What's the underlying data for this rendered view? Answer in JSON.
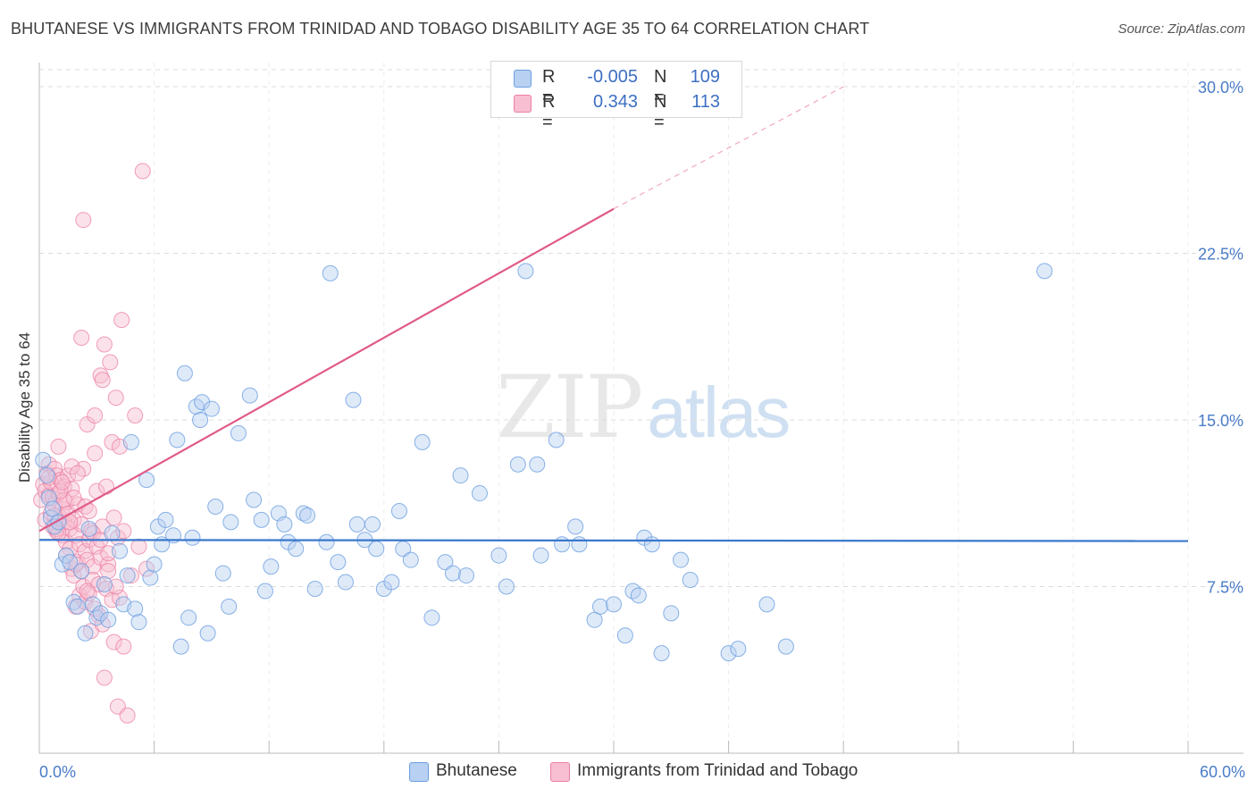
{
  "title": "BHUTANESE VS IMMIGRANTS FROM TRINIDAD AND TOBAGO DISABILITY AGE 35 TO 64 CORRELATION CHART",
  "source": "Source: ZipAtlas.com",
  "watermark": {
    "zip": "ZIP",
    "atlas": "atlas"
  },
  "colors": {
    "blue": "#6b9fe0",
    "blue_fill": "#b8d0f2",
    "blue_line": "#3a78cc",
    "pink": "#ec7fa3",
    "pink_fill": "#f7bfd1",
    "pink_line": "#e05a88",
    "grid": "#dcdcdc"
  },
  "legend": {
    "rows": [
      {
        "r_label": "R =",
        "r_value": "-0.005",
        "n_label": "N =",
        "n_value": "109"
      },
      {
        "r_label": "R =",
        "r_value": "0.343",
        "n_label": "N =",
        "n_value": "113"
      }
    ]
  },
  "bottom_legend": [
    "Bhutanese",
    "Immigrants from Trinidad and Tobago"
  ],
  "chart_data": {
    "type": "scatter",
    "title": "BHUTANESE VS IMMIGRANTS FROM TRINIDAD AND TOBAGO DISABILITY AGE 35 TO 64 CORRELATION CHART",
    "xlabel": "",
    "ylabel": "Disability Age 35 to 64",
    "xlim": [
      0,
      60
    ],
    "ylim": [
      0,
      31
    ],
    "x_tick_labels": [
      "0.0%",
      "60.0%"
    ],
    "y_ticks": [
      7.5,
      15.0,
      22.5,
      30.0
    ],
    "y_tick_labels": [
      "7.5%",
      "15.0%",
      "22.5%",
      "30.0%"
    ],
    "grid": true,
    "legend_position": "top-center",
    "series": [
      {
        "name": "Bhutanese",
        "trend": {
          "x": [
            0,
            60
          ],
          "y": [
            9.6,
            9.55
          ]
        },
        "points": [
          [
            0.2,
            13.2
          ],
          [
            0.4,
            12.5
          ],
          [
            0.5,
            11.5
          ],
          [
            0.6,
            10.6
          ],
          [
            0.7,
            11.0
          ],
          [
            0.8,
            10.2
          ],
          [
            1.0,
            10.4
          ],
          [
            1.2,
            8.5
          ],
          [
            1.4,
            8.9
          ],
          [
            1.6,
            8.6
          ],
          [
            1.8,
            6.8
          ],
          [
            2.0,
            6.6
          ],
          [
            2.2,
            8.2
          ],
          [
            2.4,
            5.4
          ],
          [
            2.6,
            10.1
          ],
          [
            2.8,
            6.7
          ],
          [
            3.0,
            6.1
          ],
          [
            3.2,
            6.3
          ],
          [
            3.4,
            7.6
          ],
          [
            3.6,
            6.0
          ],
          [
            3.8,
            9.9
          ],
          [
            4.2,
            9.1
          ],
          [
            4.4,
            6.7
          ],
          [
            4.6,
            8.0
          ],
          [
            4.8,
            14.0
          ],
          [
            5.0,
            6.5
          ],
          [
            5.2,
            5.9
          ],
          [
            5.6,
            12.3
          ],
          [
            5.8,
            7.9
          ],
          [
            6.0,
            8.5
          ],
          [
            6.2,
            10.2
          ],
          [
            6.4,
            9.4
          ],
          [
            6.6,
            10.5
          ],
          [
            7.0,
            9.8
          ],
          [
            7.2,
            14.1
          ],
          [
            7.4,
            4.8
          ],
          [
            7.6,
            17.1
          ],
          [
            7.8,
            6.1
          ],
          [
            8.0,
            9.7
          ],
          [
            8.2,
            15.6
          ],
          [
            8.5,
            15.8
          ],
          [
            8.8,
            5.4
          ],
          [
            9.0,
            15.5
          ],
          [
            9.2,
            11.1
          ],
          [
            9.6,
            8.1
          ],
          [
            9.9,
            6.6
          ],
          [
            10.0,
            10.4
          ],
          [
            10.4,
            14.4
          ],
          [
            11.0,
            16.1
          ],
          [
            11.2,
            11.4
          ],
          [
            11.6,
            10.5
          ],
          [
            11.8,
            7.3
          ],
          [
            12.1,
            8.4
          ],
          [
            12.5,
            10.8
          ],
          [
            12.8,
            10.3
          ],
          [
            13.0,
            9.5
          ],
          [
            13.4,
            9.2
          ],
          [
            13.8,
            10.8
          ],
          [
            14.0,
            10.7
          ],
          [
            14.4,
            7.4
          ],
          [
            15.0,
            9.5
          ],
          [
            15.2,
            21.6
          ],
          [
            15.6,
            8.6
          ],
          [
            16.0,
            7.7
          ],
          [
            16.4,
            15.9
          ],
          [
            16.6,
            10.3
          ],
          [
            17.0,
            9.6
          ],
          [
            17.4,
            10.3
          ],
          [
            17.6,
            9.2
          ],
          [
            18.0,
            7.4
          ],
          [
            18.4,
            7.7
          ],
          [
            18.8,
            10.9
          ],
          [
            19.0,
            9.2
          ],
          [
            19.4,
            8.7
          ],
          [
            20.0,
            14.0
          ],
          [
            20.5,
            6.1
          ],
          [
            21.2,
            8.6
          ],
          [
            21.6,
            8.1
          ],
          [
            22.0,
            12.5
          ],
          [
            22.3,
            8.0
          ],
          [
            23.0,
            11.7
          ],
          [
            24.0,
            8.9
          ],
          [
            24.4,
            7.5
          ],
          [
            25.0,
            13.0
          ],
          [
            25.4,
            21.7
          ],
          [
            26.0,
            13.0
          ],
          [
            26.2,
            8.9
          ],
          [
            27.0,
            14.1
          ],
          [
            27.3,
            9.4
          ],
          [
            28.0,
            10.2
          ],
          [
            28.2,
            9.4
          ],
          [
            29.0,
            6.0
          ],
          [
            29.3,
            6.6
          ],
          [
            30.0,
            6.7
          ],
          [
            30.6,
            5.3
          ],
          [
            31.0,
            7.3
          ],
          [
            31.3,
            7.1
          ],
          [
            31.6,
            9.7
          ],
          [
            32.0,
            9.4
          ],
          [
            32.5,
            4.5
          ],
          [
            33.0,
            6.3
          ],
          [
            33.5,
            8.7
          ],
          [
            34.0,
            7.8
          ],
          [
            36.0,
            4.5
          ],
          [
            36.5,
            4.7
          ],
          [
            38.0,
            6.7
          ],
          [
            39.0,
            4.8
          ],
          [
            52.5,
            21.7
          ],
          [
            8.4,
            15.0
          ]
        ]
      },
      {
        "name": "Immigrants from Trinidad and Tobago",
        "trend": {
          "x": [
            0,
            30
          ],
          "y": [
            10.0,
            24.5
          ]
        },
        "trend_dashed": {
          "x": [
            30,
            42
          ],
          "y": [
            24.5,
            30.0
          ]
        },
        "points": [
          [
            0.1,
            11.4
          ],
          [
            0.2,
            12.1
          ],
          [
            0.3,
            11.8
          ],
          [
            0.3,
            10.5
          ],
          [
            0.4,
            12.6
          ],
          [
            0.5,
            11.6
          ],
          [
            0.5,
            13.0
          ],
          [
            0.6,
            12.2
          ],
          [
            0.6,
            10.8
          ],
          [
            0.7,
            11.5
          ],
          [
            0.7,
            10.2
          ],
          [
            0.8,
            12.8
          ],
          [
            0.8,
            11.2
          ],
          [
            0.9,
            12.5
          ],
          [
            0.9,
            10.0
          ],
          [
            1.0,
            11.7
          ],
          [
            1.0,
            13.8
          ],
          [
            1.1,
            10.6
          ],
          [
            1.1,
            12.3
          ],
          [
            1.2,
            11.0
          ],
          [
            1.2,
            9.8
          ],
          [
            1.3,
            10.4
          ],
          [
            1.3,
            12.0
          ],
          [
            1.4,
            11.3
          ],
          [
            1.4,
            9.5
          ],
          [
            1.5,
            10.8
          ],
          [
            1.5,
            12.5
          ],
          [
            1.6,
            10.1
          ],
          [
            1.6,
            9.2
          ],
          [
            1.7,
            11.9
          ],
          [
            1.7,
            8.3
          ],
          [
            1.8,
            10.5
          ],
          [
            1.8,
            8.0
          ],
          [
            1.9,
            9.8
          ],
          [
            1.9,
            6.6
          ],
          [
            2.0,
            11.2
          ],
          [
            2.0,
            8.6
          ],
          [
            2.1,
            9.4
          ],
          [
            2.1,
            7.1
          ],
          [
            2.2,
            10.3
          ],
          [
            2.2,
            8.2
          ],
          [
            2.3,
            12.8
          ],
          [
            2.3,
            7.5
          ],
          [
            2.4,
            9.1
          ],
          [
            2.4,
            6.8
          ],
          [
            2.5,
            8.7
          ],
          [
            2.5,
            14.8
          ],
          [
            2.6,
            7.2
          ],
          [
            2.6,
            9.6
          ],
          [
            2.7,
            10.0
          ],
          [
            2.7,
            5.5
          ],
          [
            2.8,
            8.4
          ],
          [
            2.8,
            7.8
          ],
          [
            2.9,
            13.5
          ],
          [
            2.9,
            15.2
          ],
          [
            3.0,
            9.3
          ],
          [
            3.0,
            11.8
          ],
          [
            3.1,
            7.6
          ],
          [
            3.1,
            6.2
          ],
          [
            3.2,
            8.8
          ],
          [
            3.2,
            17.0
          ],
          [
            3.3,
            16.8
          ],
          [
            3.3,
            10.2
          ],
          [
            3.4,
            3.4
          ],
          [
            3.4,
            18.4
          ],
          [
            3.5,
            12.0
          ],
          [
            3.5,
            7.4
          ],
          [
            3.6,
            8.5
          ],
          [
            3.6,
            9.0
          ],
          [
            3.7,
            17.6
          ],
          [
            3.8,
            6.9
          ],
          [
            3.8,
            14.0
          ],
          [
            3.9,
            10.6
          ],
          [
            3.9,
            5.0
          ],
          [
            4.0,
            16.0
          ],
          [
            4.1,
            9.7
          ],
          [
            4.1,
            2.1
          ],
          [
            4.2,
            7.0
          ],
          [
            4.2,
            13.8
          ],
          [
            4.3,
            19.5
          ],
          [
            4.4,
            10.0
          ],
          [
            4.4,
            4.8
          ],
          [
            4.6,
            1.7
          ],
          [
            4.8,
            8.0
          ],
          [
            5.0,
            15.2
          ],
          [
            5.2,
            9.3
          ],
          [
            5.4,
            26.2
          ],
          [
            5.6,
            8.3
          ],
          [
            2.3,
            24.0
          ],
          [
            2.2,
            18.7
          ],
          [
            0.9,
            10.1
          ],
          [
            1.3,
            11.4
          ],
          [
            1.7,
            12.9
          ],
          [
            1.0,
            9.9
          ],
          [
            0.5,
            12.4
          ],
          [
            1.1,
            11.8
          ],
          [
            1.6,
            10.4
          ],
          [
            2.0,
            12.6
          ],
          [
            2.4,
            11.1
          ],
          [
            2.8,
            9.9
          ],
          [
            3.2,
            9.6
          ],
          [
            3.6,
            8.2
          ],
          [
            4.0,
            7.5
          ],
          [
            1.4,
            8.9
          ],
          [
            1.9,
            8.5
          ],
          [
            2.5,
            7.3
          ],
          [
            2.9,
            6.5
          ],
          [
            3.3,
            5.8
          ],
          [
            0.8,
            10.7
          ],
          [
            1.2,
            12.2
          ],
          [
            1.8,
            11.5
          ],
          [
            2.6,
            10.9
          ],
          [
            29.0,
            29.6
          ]
        ]
      }
    ]
  }
}
